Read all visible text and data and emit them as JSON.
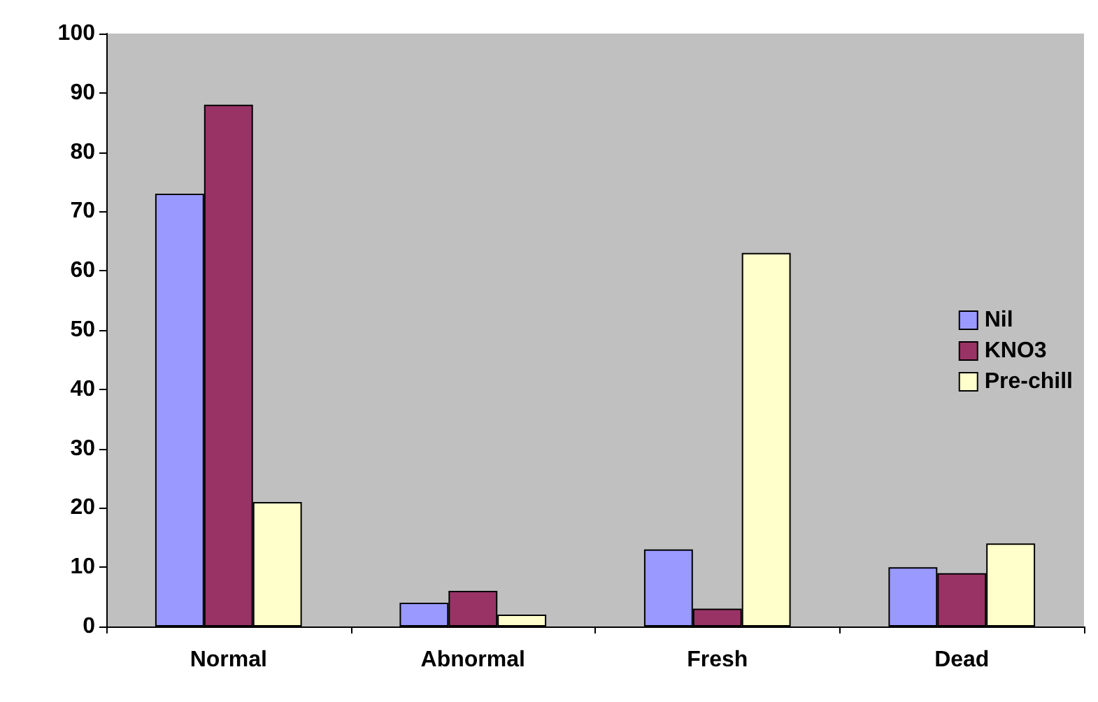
{
  "chart_data": {
    "type": "bar",
    "categories": [
      "Normal",
      "Abnormal",
      "Fresh",
      "Dead"
    ],
    "series": [
      {
        "name": "Nil",
        "color": "#9999ff",
        "values": [
          73,
          4,
          13,
          10
        ]
      },
      {
        "name": "KNO3",
        "color": "#993366",
        "values": [
          88,
          6,
          3,
          9
        ]
      },
      {
        "name": "Pre-chill",
        "color": "#ffffcc",
        "values": [
          21,
          2,
          63,
          14
        ]
      }
    ],
    "ylim": [
      0,
      100
    ],
    "yticks": [
      0,
      10,
      20,
      30,
      40,
      50,
      60,
      70,
      80,
      90,
      100
    ],
    "grid": false,
    "legend": "right"
  }
}
